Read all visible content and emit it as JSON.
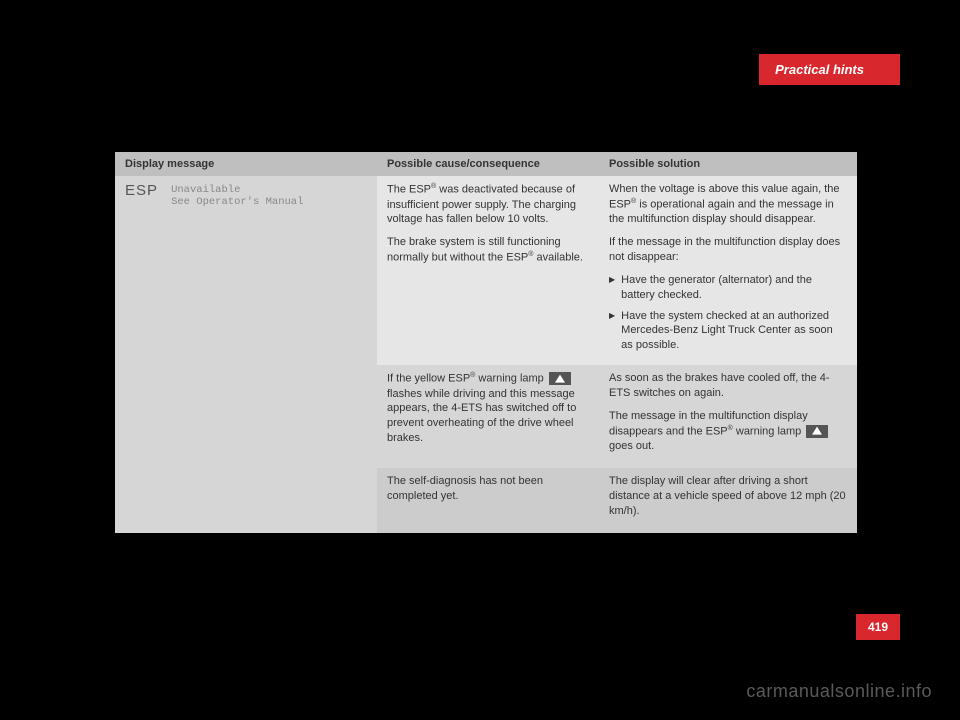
{
  "header": {
    "section_title": "Practical hints"
  },
  "table": {
    "columns": {
      "display": "Display message",
      "cause": "Possible cause/consequence",
      "solution": "Possible solution"
    },
    "display_cell": {
      "system": "ESP",
      "line1": "Unavailable",
      "line2": "See Operator's Manual"
    },
    "rows": [
      {
        "cause_p1a": "The ESP",
        "cause_p1b": " was deactivated because of insufficient power supply. The charging voltage has fallen below 10 volts.",
        "cause_p2a": "The brake system is still functioning normally but without the ESP",
        "cause_p2b": " available.",
        "sol_p1a": "When the voltage is above this value again, the ESP",
        "sol_p1b": " is operational again and the message in the multifunction display should disappear.",
        "sol_p2": "If the message in the multifunction display does not disappear:",
        "sol_b1": "Have the generator (alternator) and the battery checked.",
        "sol_b2": "Have the system checked at an authorized Mercedes-Benz Light Truck Center as soon as possible."
      },
      {
        "cause_p1a": "If the yellow ESP",
        "cause_p1b": " warning lamp ",
        "cause_p1c": " flashes while driving and this message appears, the 4-ETS has switched off to prevent overheating of the drive wheel brakes.",
        "sol_p1": "As soon as the brakes have cooled off, the 4-ETS switches on again.",
        "sol_p2a": "The message in the multifunction display disappears and the ESP",
        "sol_p2b": " warning lamp ",
        "sol_p2c": " goes out."
      },
      {
        "cause_p1": "The self-diagnosis has not been completed yet.",
        "sol_p1": "The display will clear after driving a short distance at a vehicle speed of above 12 mph (20 km/h)."
      }
    ]
  },
  "footer": {
    "page_number": "419",
    "watermark": "carmanualsonline.info"
  },
  "reg": "®"
}
